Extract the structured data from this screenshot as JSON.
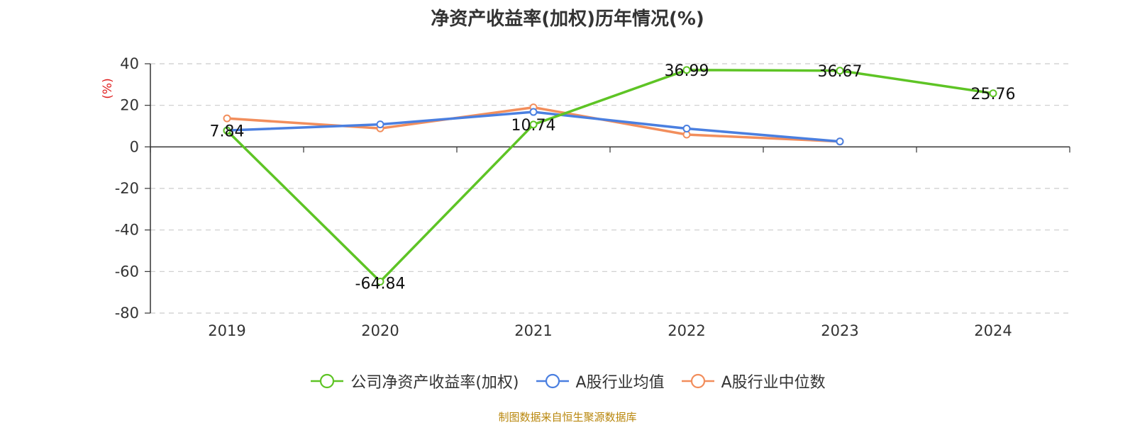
{
  "title": "净资产收益率(加权)历年情况(%)",
  "source": "制图数据来自恒生聚源数据库",
  "chart_data": {
    "type": "line",
    "title": "净资产收益率(加权)历年情况(%)",
    "xlabel": "",
    "ylabel": "(%)",
    "ylabel_color": "#e02020",
    "categories": [
      "2019",
      "2020",
      "2021",
      "2022",
      "2023",
      "2024"
    ],
    "ylim": [
      -80,
      40
    ],
    "yticks": [
      40,
      20,
      0,
      -20,
      -40,
      -60,
      -80
    ],
    "grid": true,
    "legend_position": "bottom",
    "series": [
      {
        "name": "公司净资产收益率(加权)",
        "color": "#5ec425",
        "values": [
          7.84,
          -64.84,
          10.74,
          36.99,
          36.67,
          25.76
        ],
        "labels_shown": true
      },
      {
        "name": "A股行业均值",
        "color": "#4a7fe0",
        "values": [
          7.9,
          10.8,
          16.8,
          8.8,
          2.6,
          null
        ],
        "labels_shown": false
      },
      {
        "name": "A股行业中位数",
        "color": "#f28e5c",
        "values": [
          13.7,
          8.9,
          19.0,
          5.9,
          2.6,
          null
        ],
        "labels_shown": false
      }
    ]
  }
}
